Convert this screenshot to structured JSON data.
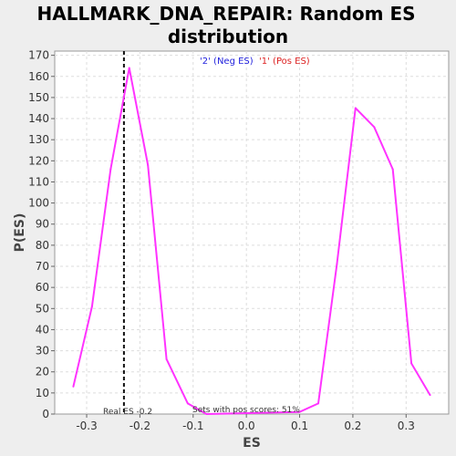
{
  "chart_data": {
    "type": "line",
    "title_line1": "HALLMARK_DNA_REPAIR: Random ES",
    "title_line2": "distribution",
    "xlabel": "ES",
    "ylabel": "P(ES)",
    "xlim": [
      -0.36,
      0.38
    ],
    "ylim": [
      0,
      172
    ],
    "x_ticks": [
      -0.3,
      -0.2,
      -0.1,
      0.0,
      0.1,
      0.2,
      0.3
    ],
    "x_tick_labels": [
      "-0.3",
      "-0.2",
      "-0.1",
      "0.0",
      "0.1",
      "0.2",
      "0.3"
    ],
    "y_ticks": [
      0,
      10,
      20,
      30,
      40,
      50,
      60,
      70,
      80,
      90,
      100,
      110,
      120,
      130,
      140,
      150,
      160,
      170
    ],
    "y_tick_labels": [
      "0",
      "10",
      "20",
      "30",
      "40",
      "50",
      "60",
      "70",
      "80",
      "90",
      "100",
      "110",
      "120",
      "130",
      "140",
      "150",
      "160",
      "170"
    ],
    "grid": true,
    "series": [
      {
        "color": "#ff33ff",
        "x": [
          -0.325,
          -0.29,
          -0.255,
          -0.22,
          -0.185,
          -0.15,
          -0.11,
          -0.075,
          0.1,
          0.135,
          0.17,
          0.205,
          0.24,
          0.275,
          0.31,
          0.345
        ],
        "y": [
          13,
          51,
          116,
          164,
          118,
          26,
          5,
          0,
          1,
          5,
          71,
          145,
          136,
          116,
          24,
          9
        ]
      }
    ],
    "real_es": -0.23,
    "real_es_label": "Real ES -0.2",
    "pos_scores_label": "Sets with pos scores: 51%",
    "legend": [
      {
        "label": "'2' (Neg ES)",
        "color": "#2222dd"
      },
      {
        "label": "'1' (Pos ES)",
        "color": "#dd2222"
      }
    ],
    "legend_placement": "top-center"
  }
}
